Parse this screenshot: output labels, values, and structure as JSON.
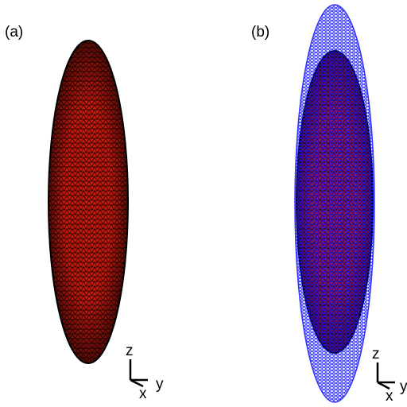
{
  "panels": [
    {
      "label": "(a)",
      "axes": {
        "z": "z",
        "x": "x",
        "y": "y"
      }
    },
    {
      "label": "(b)",
      "axes": {
        "z": "z",
        "x": "x",
        "y": "y"
      }
    }
  ]
}
